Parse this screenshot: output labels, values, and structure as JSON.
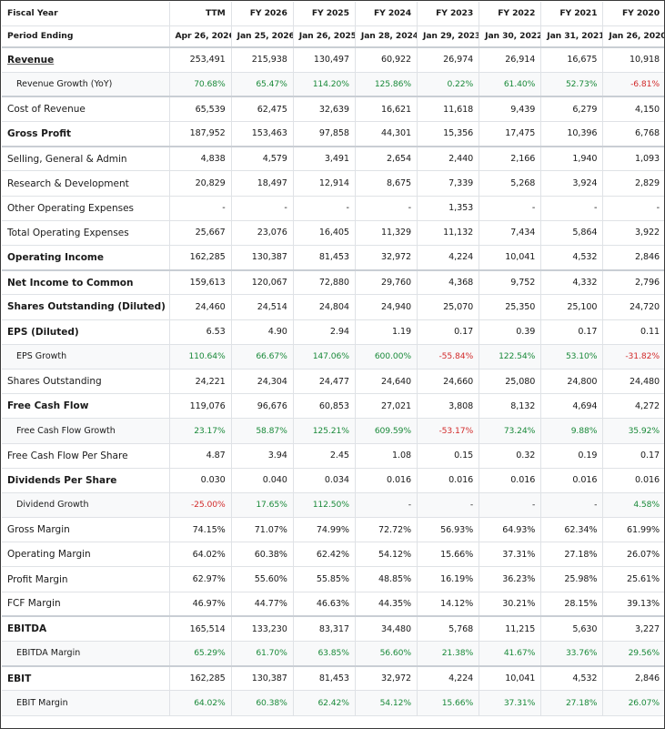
{
  "header": {
    "fiscal_year_label": "Fiscal Year",
    "period_ending_label": "Period Ending",
    "columns": [
      "TTM",
      "FY 2026",
      "FY 2025",
      "FY 2024",
      "FY 2023",
      "FY 2022",
      "FY 2021",
      "FY 2020"
    ],
    "period_ends": [
      "Apr 26, 2026",
      "Jan 25, 2026",
      "Jan 26, 2025",
      "Jan 28, 2024",
      "Jan 29, 2023",
      "Jan 30, 2022",
      "Jan 31, 2021",
      "Jan 26, 2020"
    ]
  },
  "rows": [
    {
      "label": "Revenue",
      "style": "bold link",
      "values": [
        "253,491",
        "215,938",
        "130,497",
        "60,922",
        "26,974",
        "26,914",
        "16,675",
        "10,918"
      ]
    },
    {
      "label": "Revenue Growth (YoY)",
      "style": "sub",
      "values": [
        "70.68%",
        "65.47%",
        "114.20%",
        "125.86%",
        "0.22%",
        "61.40%",
        "52.73%",
        "-6.81%"
      ]
    },
    {
      "label": "Cost of Revenue",
      "style": "sep",
      "values": [
        "65,539",
        "62,475",
        "32,639",
        "16,621",
        "11,618",
        "9,439",
        "6,279",
        "4,150"
      ]
    },
    {
      "label": "Gross Profit",
      "style": "bold",
      "values": [
        "187,952",
        "153,463",
        "97,858",
        "44,301",
        "15,356",
        "17,475",
        "10,396",
        "6,768"
      ]
    },
    {
      "label": "Selling, General & Admin",
      "style": "sep",
      "values": [
        "4,838",
        "4,579",
        "3,491",
        "2,654",
        "2,440",
        "2,166",
        "1,940",
        "1,093"
      ]
    },
    {
      "label": "Research & Development",
      "style": "",
      "values": [
        "20,829",
        "18,497",
        "12,914",
        "8,675",
        "7,339",
        "5,268",
        "3,924",
        "2,829"
      ]
    },
    {
      "label": "Other Operating Expenses",
      "style": "",
      "values": [
        "-",
        "-",
        "-",
        "-",
        "1,353",
        "-",
        "-",
        "-"
      ]
    },
    {
      "label": "Total Operating Expenses",
      "style": "",
      "values": [
        "25,667",
        "23,076",
        "16,405",
        "11,329",
        "11,132",
        "7,434",
        "5,864",
        "3,922"
      ]
    },
    {
      "label": "Operating Income",
      "style": "bold",
      "values": [
        "162,285",
        "130,387",
        "81,453",
        "32,972",
        "4,224",
        "10,041",
        "4,532",
        "2,846"
      ]
    },
    {
      "label": "Net Income to Common",
      "style": "bold sep",
      "values": [
        "159,613",
        "120,067",
        "72,880",
        "29,760",
        "4,368",
        "9,752",
        "4,332",
        "2,796"
      ]
    },
    {
      "label": "Shares Outstanding (Diluted)",
      "style": "bold",
      "values": [
        "24,460",
        "24,514",
        "24,804",
        "24,940",
        "25,070",
        "25,350",
        "25,100",
        "24,720"
      ]
    },
    {
      "label": "EPS (Diluted)",
      "style": "bold",
      "values": [
        "6.53",
        "4.90",
        "2.94",
        "1.19",
        "0.17",
        "0.39",
        "0.17",
        "0.11"
      ]
    },
    {
      "label": "EPS Growth",
      "style": "sub",
      "values": [
        "110.64%",
        "66.67%",
        "147.06%",
        "600.00%",
        "-55.84%",
        "122.54%",
        "53.10%",
        "-31.82%"
      ]
    },
    {
      "label": "Shares Outstanding",
      "style": "",
      "values": [
        "24,221",
        "24,304",
        "24,477",
        "24,640",
        "24,660",
        "25,080",
        "24,800",
        "24,480"
      ]
    },
    {
      "label": "Free Cash Flow",
      "style": "bold",
      "values": [
        "119,076",
        "96,676",
        "60,853",
        "27,021",
        "3,808",
        "8,132",
        "4,694",
        "4,272"
      ]
    },
    {
      "label": "Free Cash Flow Growth",
      "style": "sub",
      "values": [
        "23.17%",
        "58.87%",
        "125.21%",
        "609.59%",
        "-53.17%",
        "73.24%",
        "9.88%",
        "35.92%"
      ]
    },
    {
      "label": "Free Cash Flow Per Share",
      "style": "",
      "values": [
        "4.87",
        "3.94",
        "2.45",
        "1.08",
        "0.15",
        "0.32",
        "0.19",
        "0.17"
      ]
    },
    {
      "label": "Dividends Per Share",
      "style": "bold",
      "values": [
        "0.030",
        "0.040",
        "0.034",
        "0.016",
        "0.016",
        "0.016",
        "0.016",
        "0.016"
      ]
    },
    {
      "label": "Dividend Growth",
      "style": "sub",
      "values": [
        "-25.00%",
        "17.65%",
        "112.50%",
        "-",
        "-",
        "-",
        "-",
        "4.58%"
      ]
    },
    {
      "label": "Gross Margin",
      "style": "",
      "values": [
        "74.15%",
        "71.07%",
        "74.99%",
        "72.72%",
        "56.93%",
        "64.93%",
        "62.34%",
        "61.99%"
      ]
    },
    {
      "label": "Operating Margin",
      "style": "",
      "values": [
        "64.02%",
        "60.38%",
        "62.42%",
        "54.12%",
        "15.66%",
        "37.31%",
        "27.18%",
        "26.07%"
      ]
    },
    {
      "label": "Profit Margin",
      "style": "",
      "values": [
        "62.97%",
        "55.60%",
        "55.85%",
        "48.85%",
        "16.19%",
        "36.23%",
        "25.98%",
        "25.61%"
      ]
    },
    {
      "label": "FCF Margin",
      "style": "",
      "values": [
        "46.97%",
        "44.77%",
        "46.63%",
        "44.35%",
        "14.12%",
        "30.21%",
        "28.15%",
        "39.13%"
      ]
    },
    {
      "label": "EBITDA",
      "style": "bold sep",
      "values": [
        "165,514",
        "133,230",
        "83,317",
        "34,480",
        "5,768",
        "11,215",
        "5,630",
        "3,227"
      ]
    },
    {
      "label": "EBITDA Margin",
      "style": "sub",
      "values": [
        "65.29%",
        "61.70%",
        "63.85%",
        "56.60%",
        "21.38%",
        "41.67%",
        "33.76%",
        "29.56%"
      ]
    },
    {
      "label": "EBIT",
      "style": "bold sep",
      "values": [
        "162,285",
        "130,387",
        "81,453",
        "32,972",
        "4,224",
        "10,041",
        "4,532",
        "2,846"
      ]
    },
    {
      "label": "EBIT Margin",
      "style": "sub",
      "values": [
        "64.02%",
        "60.38%",
        "62.42%",
        "54.12%",
        "15.66%",
        "37.31%",
        "27.18%",
        "26.07%"
      ]
    }
  ],
  "colors": {
    "positive": "#1a8a3a",
    "negative": "#d22b2b",
    "border": "#dfe2e6"
  }
}
